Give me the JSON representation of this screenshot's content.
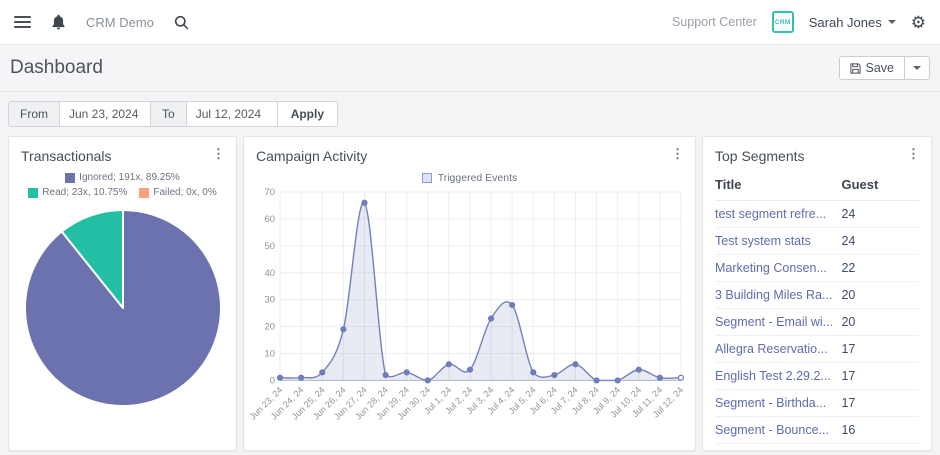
{
  "navbar": {
    "brand": "CRM Demo",
    "support_center": "Support Center",
    "user_badge": "CRM",
    "user_name": "Sarah Jones"
  },
  "page": {
    "title": "Dashboard",
    "save_label": "Save"
  },
  "date_filter": {
    "from_label": "From",
    "from_value": "Jun 23, 2024",
    "to_label": "To",
    "to_value": "Jul 12, 2024",
    "apply_label": "Apply"
  },
  "panels": {
    "transactionals": {
      "title": "Transactionals",
      "legend": [
        {
          "label": "Ignored; 191x, 89.25%",
          "color": "#6b72ae"
        },
        {
          "label": "Read; 23x, 10.75%",
          "color": "#23bfa5"
        },
        {
          "label": "Failed; 0x, 0%",
          "color": "#f9a27c"
        }
      ]
    },
    "campaign": {
      "title": "Campaign Activity",
      "legend_label": "Triggered Events"
    },
    "top_segments": {
      "title": "Top Segments",
      "columns": [
        "Title",
        "Guest"
      ],
      "rows": [
        {
          "title": "test segment refre...",
          "guest": "24"
        },
        {
          "title": "Test system stats",
          "guest": "24"
        },
        {
          "title": "Marketing Consen...",
          "guest": "22"
        },
        {
          "title": "3 Building Miles Ra...",
          "guest": "20"
        },
        {
          "title": "Segment - Email wi...",
          "guest": "20"
        },
        {
          "title": "Allegra Reservatio...",
          "guest": "17"
        },
        {
          "title": "English Test 2.29.2...",
          "guest": "17"
        },
        {
          "title": "Segment - Birthda...",
          "guest": "17"
        },
        {
          "title": "Segment - Bounce...",
          "guest": "16"
        }
      ]
    }
  },
  "chart_data": [
    {
      "type": "pie",
      "title": "Transactionals",
      "labels": [
        "Ignored",
        "Read",
        "Failed"
      ],
      "values": [
        191,
        23,
        0
      ],
      "percent_labels": [
        "89.25%",
        "10.75%",
        "0%"
      ],
      "colors": [
        "#6b72ae",
        "#23bfa5",
        "#f9a27c"
      ],
      "start_angle_deg": -90,
      "direction": "clockwise",
      "legend_position": "top"
    },
    {
      "type": "area",
      "title": "Campaign Activity",
      "categories": [
        "Jun 23, 24",
        "Jun 24, 24",
        "Jun 25, 24",
        "Jun 26, 24",
        "Jun 27, 24",
        "Jun 28, 24",
        "Jun 29, 24",
        "Jun 30, 24",
        "Jul 1, 24",
        "Jul 2, 24",
        "Jul 3, 24",
        "Jul 4, 24",
        "Jul 5, 24",
        "Jul 6, 24",
        "Jul 7, 24",
        "Jul 8, 24",
        "Jul 9, 24",
        "Jul 10, 24",
        "Jul 11, 24",
        "Jul 12, 24"
      ],
      "series": [
        {
          "name": "Triggered Events",
          "values": [
            1,
            1,
            3,
            19,
            66,
            2,
            3,
            0,
            6,
            4,
            23,
            28,
            3,
            2,
            6,
            0,
            0,
            4,
            1,
            1
          ]
        }
      ],
      "ylim": [
        0,
        70
      ],
      "yticks": [
        0,
        10,
        20,
        30,
        40,
        50,
        60,
        70
      ],
      "grid": true,
      "legend_position": "top",
      "line_color": "#7381bd",
      "fill_color": "rgba(115,129,189,0.16)",
      "point_color": "#6f7db9"
    }
  ],
  "colors": {
    "teal_accent": "#2fbfae",
    "link": "#5f6cb0"
  }
}
